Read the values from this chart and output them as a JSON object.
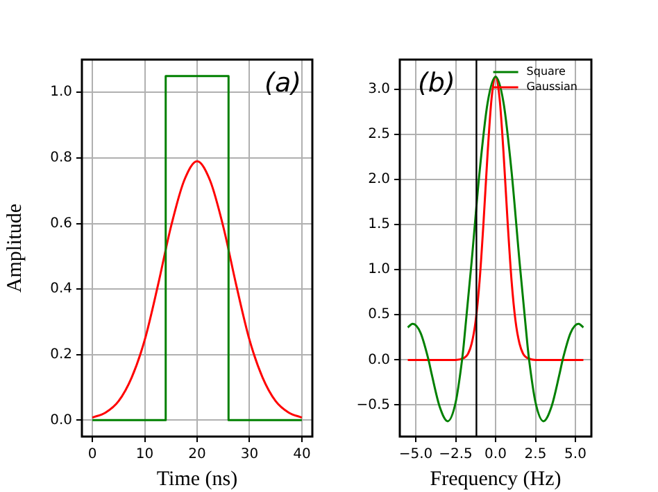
{
  "chart_data": [
    {
      "type": "line",
      "xlabel": "Time (ns)",
      "ylabel": "Amplitude",
      "annotations": [
        "(a)"
      ],
      "xlim": [
        -2,
        42
      ],
      "ylim": [
        -0.05,
        1.1
      ],
      "xticks": [
        0,
        10,
        20,
        30,
        40
      ],
      "yticks": [
        {
          "value": 0,
          "label": "0.0"
        },
        {
          "value": 0.2,
          "label": "0.2"
        },
        {
          "value": 0.4,
          "label": "0.4"
        },
        {
          "value": 0.6,
          "label": "0.6"
        },
        {
          "value": 0.8,
          "label": "0.8"
        },
        {
          "value": 1,
          "label": "1.0"
        }
      ],
      "grid": true,
      "marker": "none",
      "line_style": "solid",
      "series": [
        {
          "color": "#008000",
          "x": [
            0,
            14,
            14,
            26,
            26,
            40
          ],
          "values": [
            0,
            0,
            1.05,
            1.05,
            0,
            0
          ]
        },
        {
          "color": "#ff0000",
          "x": [
            0,
            2.5,
            5,
            7.5,
            10,
            12.5,
            15,
            17.5,
            20,
            22.5,
            25,
            27.5,
            30,
            32.5,
            35,
            37.5,
            40
          ],
          "values": [
            0.008,
            0.023,
            0.058,
            0.13,
            0.245,
            0.41,
            0.59,
            0.73,
            0.79,
            0.73,
            0.59,
            0.41,
            0.245,
            0.13,
            0.058,
            0.023,
            0.008
          ]
        }
      ]
    },
    {
      "type": "line",
      "xlabel": "Frequency (Hz)",
      "annotations": [
        "(b)"
      ],
      "xlim": [
        -6,
        6
      ],
      "ylim": [
        -0.85,
        3.33
      ],
      "xticks": [
        {
          "value": -5,
          "label": "−5.0"
        },
        {
          "value": -2.5,
          "label": "−2.5"
        },
        {
          "value": 0,
          "label": "0.0"
        },
        {
          "value": 2.5,
          "label": "2.5"
        },
        {
          "value": 5,
          "label": "5.0"
        }
      ],
      "yticks": [
        {
          "value": -0.5,
          "label": "−0.5"
        },
        {
          "value": 0,
          "label": "0.0"
        },
        {
          "value": 0.5,
          "label": "0.5"
        },
        {
          "value": 1,
          "label": "1.0"
        },
        {
          "value": 1.5,
          "label": "1.5"
        },
        {
          "value": 2,
          "label": "2.0"
        },
        {
          "value": 2.5,
          "label": "2.5"
        },
        {
          "value": 3,
          "label": "3.0"
        }
      ],
      "grid": true,
      "legend": "top right",
      "marker": "none",
      "line_style": "solid",
      "ref_lines": [
        {
          "axis": "x",
          "value": -1.2,
          "color": "#000000"
        }
      ],
      "series": [
        {
          "name": "Square",
          "color": "#008000",
          "x": [
            -5.5,
            -5.2,
            -4.7,
            -4.2,
            -4.0,
            -3.5,
            -3.0,
            -2.5,
            -2.1,
            -2.0,
            -1.5,
            -1.0,
            -0.5,
            0,
            0.5,
            1.0,
            1.5,
            2.0,
            2.1,
            2.5,
            3.0,
            3.5,
            4.0,
            4.2,
            4.7,
            5.2,
            5.5
          ],
          "values": [
            0.36,
            0.4,
            0.3,
            0,
            -0.16,
            -0.52,
            -0.68,
            -0.47,
            0,
            0.16,
            1.09,
            2.09,
            2.85,
            3.14,
            2.85,
            2.09,
            1.09,
            0.16,
            0,
            -0.47,
            -0.68,
            -0.52,
            -0.16,
            0,
            0.3,
            0.4,
            0.36
          ]
        },
        {
          "name": "Gaussian",
          "color": "#ff0000",
          "x": [
            -5.5,
            -2.5,
            -2.0,
            -1.75,
            -1.5,
            -1.25,
            -1.0,
            -0.75,
            -0.5,
            -0.25,
            0,
            0.25,
            0.5,
            0.75,
            1.0,
            1.25,
            1.5,
            1.75,
            2.0,
            2.5,
            5.5
          ],
          "values": [
            0,
            0,
            0.02,
            0.06,
            0.18,
            0.43,
            0.88,
            1.54,
            2.29,
            2.9,
            3.14,
            2.9,
            2.29,
            1.54,
            0.88,
            0.43,
            0.18,
            0.06,
            0.02,
            0,
            0
          ]
        }
      ]
    }
  ]
}
